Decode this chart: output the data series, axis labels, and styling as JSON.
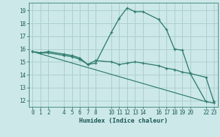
{
  "xlabel": "Humidex (Indice chaleur)",
  "bg_color": "#cce8e8",
  "grid_color": "#aacece",
  "line_color": "#2e7b6e",
  "xlim": [
    -0.5,
    23.5
  ],
  "ylim": [
    11.5,
    19.6
  ],
  "xticks": [
    0,
    1,
    2,
    4,
    5,
    6,
    7,
    8,
    10,
    11,
    12,
    13,
    14,
    16,
    17,
    18,
    19,
    20,
    22,
    23
  ],
  "yticks": [
    12,
    13,
    14,
    15,
    16,
    17,
    18,
    19
  ],
  "series1_x": [
    0,
    1,
    2,
    4,
    5,
    6,
    7,
    8,
    10,
    11,
    12,
    13,
    14,
    16,
    17,
    18,
    19,
    20,
    22,
    23
  ],
  "series1_y": [
    15.8,
    15.7,
    15.8,
    15.6,
    15.5,
    15.3,
    14.8,
    14.9,
    17.3,
    18.4,
    19.2,
    18.9,
    18.9,
    18.3,
    17.5,
    16.0,
    15.9,
    14.1,
    13.8,
    11.9
  ],
  "series2_x": [
    0,
    1,
    2,
    4,
    5,
    6,
    7,
    8,
    10,
    11,
    12,
    13,
    14,
    16,
    17,
    18,
    19,
    20,
    22,
    23
  ],
  "series2_y": [
    15.8,
    15.7,
    15.7,
    15.5,
    15.4,
    15.2,
    14.8,
    15.1,
    15.0,
    14.8,
    14.9,
    15.0,
    14.9,
    14.7,
    14.5,
    14.4,
    14.2,
    14.1,
    11.9,
    11.8
  ],
  "series3_x": [
    0,
    22
  ],
  "series3_y": [
    15.8,
    11.9
  ]
}
